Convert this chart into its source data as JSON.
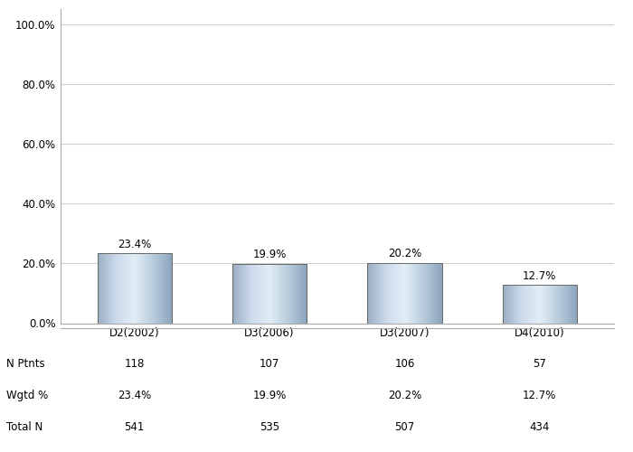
{
  "categories": [
    "D2(2002)",
    "D3(2006)",
    "D3(2007)",
    "D4(2010)"
  ],
  "values": [
    23.4,
    19.9,
    20.2,
    12.7
  ],
  "n_ptnts": [
    118,
    107,
    106,
    57
  ],
  "wgtd_pct": [
    "23.4%",
    "19.9%",
    "20.2%",
    "12.7%"
  ],
  "total_n": [
    541,
    535,
    507,
    434
  ],
  "yticks": [
    0,
    20,
    40,
    60,
    80,
    100
  ],
  "ytick_labels": [
    "0.0%",
    "20.0%",
    "40.0%",
    "60.0%",
    "80.0%",
    "100.0%"
  ],
  "ylim": [
    0,
    105
  ],
  "table_row_labels": [
    "N Ptnts",
    "Wgtd %",
    "Total N"
  ],
  "background_color": "#ffffff",
  "grid_color": "#d0d0d0",
  "border_color": "#666666",
  "tick_fontsize": 8.5,
  "table_fontsize": 8.5,
  "value_fontsize": 8.5
}
